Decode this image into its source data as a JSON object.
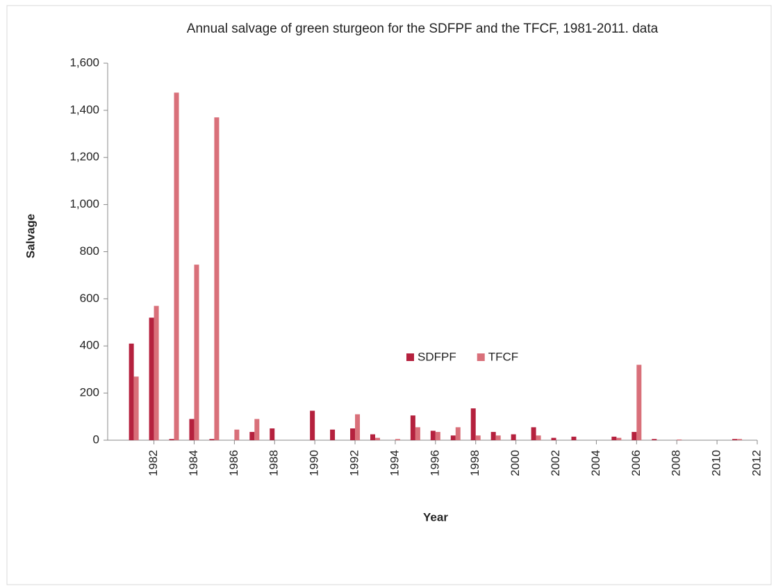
{
  "chart_data": {
    "type": "bar",
    "title": "Annual salvage of green sturgeon for the SDFPF and the TFCF, 1981-2011. data",
    "x_label": "Year",
    "y_label": "Salvage",
    "x": [
      1981,
      1982,
      1983,
      1984,
      1985,
      1986,
      1987,
      1988,
      1989,
      1990,
      1991,
      1992,
      1993,
      1994,
      1995,
      1996,
      1997,
      1998,
      1999,
      2000,
      2001,
      2002,
      2003,
      2004,
      2005,
      2006,
      2007,
      2008,
      2009,
      2010,
      2011
    ],
    "series": [
      {
        "name": "SDFPF",
        "color": "#b5213e",
        "values": [
          410,
          520,
          5,
          90,
          5,
          0,
          35,
          50,
          0,
          125,
          45,
          50,
          25,
          0,
          105,
          40,
          20,
          135,
          35,
          25,
          55,
          10,
          15,
          0,
          15,
          35,
          5,
          0,
          0,
          0,
          5
        ]
      },
      {
        "name": "TFCF",
        "color": "#d9707a",
        "values": [
          270,
          570,
          1475,
          745,
          1370,
          45,
          90,
          0,
          0,
          0,
          0,
          110,
          10,
          5,
          55,
          35,
          55,
          20,
          20,
          0,
          20,
          0,
          0,
          0,
          10,
          320,
          0,
          3,
          0,
          0,
          5
        ]
      }
    ],
    "xlim": [
      1979.7,
      2012
    ],
    "xticks": [
      1982,
      1984,
      1986,
      1988,
      1990,
      1992,
      1994,
      1996,
      1998,
      2000,
      2002,
      2004,
      2006,
      2008,
      2010,
      2012
    ],
    "ylim": [
      0,
      1600
    ],
    "yticks": [
      0,
      200,
      400,
      600,
      800,
      {
        "value": 1000,
        "label": "1,000"
      },
      {
        "value": 1200,
        "label": "1,200"
      },
      {
        "value": 1400,
        "label": "1,400"
      },
      {
        "value": 1600,
        "label": "1,600"
      }
    ],
    "grid": false,
    "legend": "center"
  }
}
